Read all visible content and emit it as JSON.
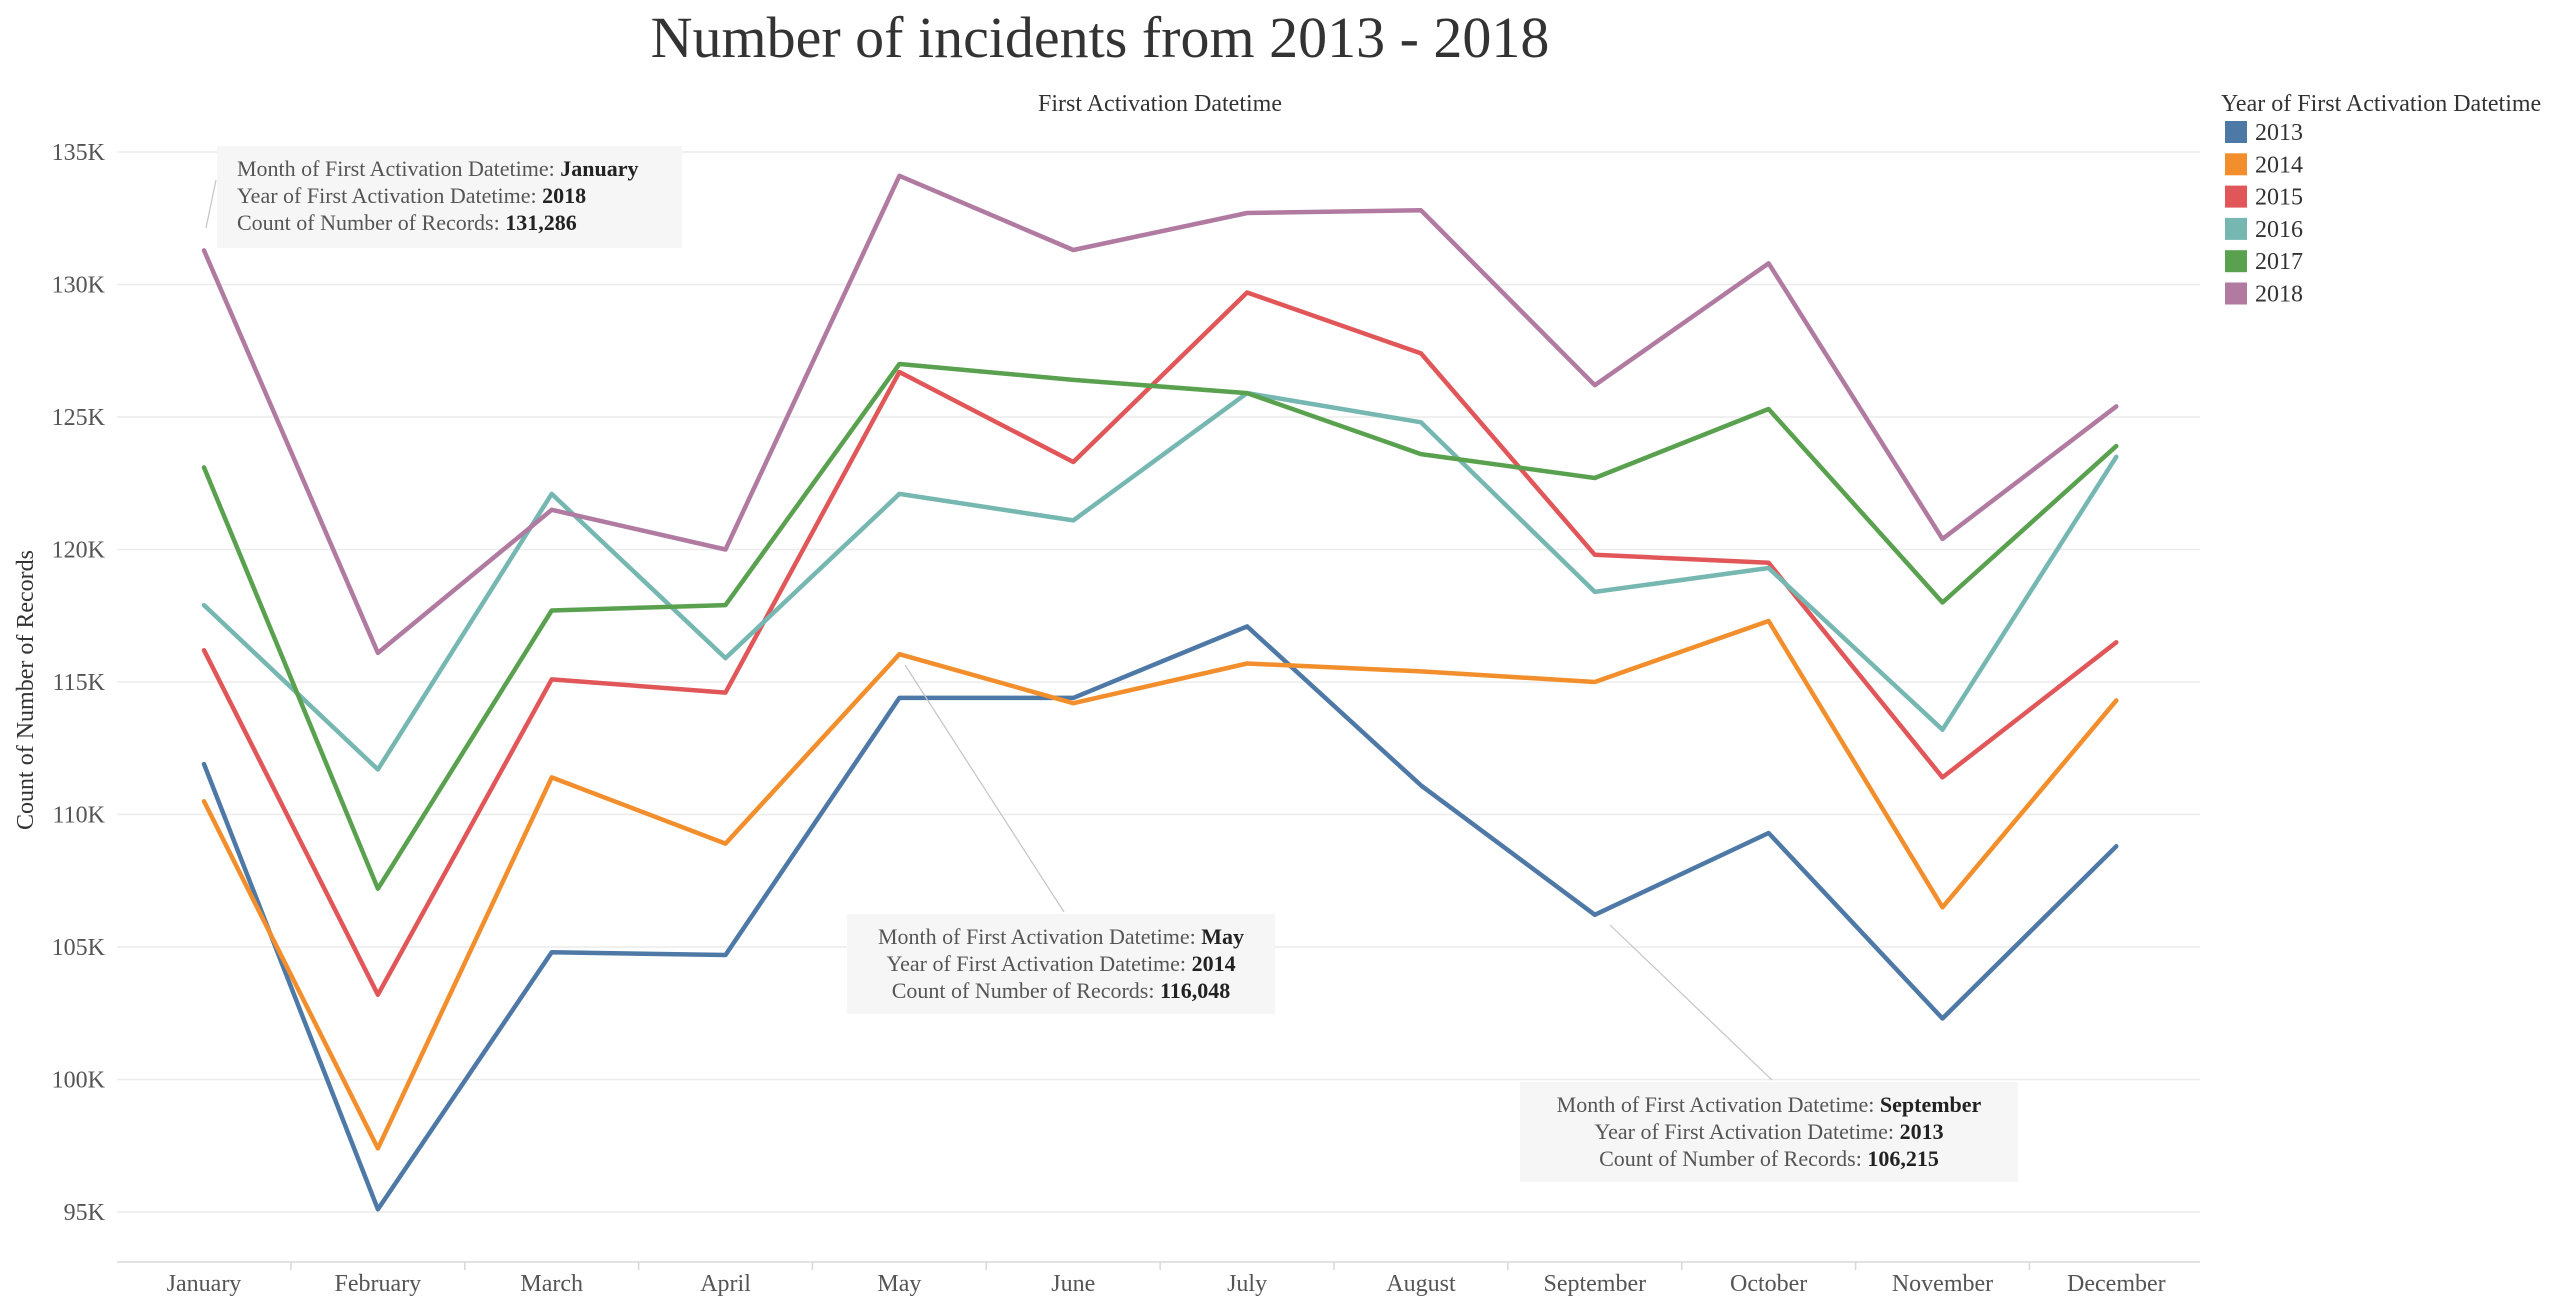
{
  "chart_data": {
    "type": "line",
    "title": "Number of incidents from 2013 - 2018",
    "subtitle": "First Activation Datetime",
    "xlabel": "",
    "ylabel": "Count of Number of Records",
    "ylim": [
      93000,
      135000
    ],
    "yticks": [
      95000,
      100000,
      105000,
      110000,
      115000,
      120000,
      125000,
      130000,
      135000
    ],
    "ytick_labels": [
      "95K",
      "100K",
      "105K",
      "110K",
      "115K",
      "120K",
      "125K",
      "130K",
      "135K"
    ],
    "grid": true,
    "legend_title": "Year of First Activation Datetime",
    "legend_position": "top-right",
    "categories": [
      "January",
      "February",
      "March",
      "April",
      "May",
      "June",
      "July",
      "August",
      "September",
      "October",
      "November",
      "December"
    ],
    "series": [
      {
        "name": "2013",
        "color": "#4e79a7",
        "values": [
          111900,
          95100,
          104800,
          104700,
          114400,
          114400,
          117100,
          111100,
          106215,
          109300,
          102300,
          108800
        ]
      },
      {
        "name": "2014",
        "color": "#f28e2b",
        "values": [
          110500,
          97400,
          111400,
          108900,
          116048,
          114200,
          115700,
          115400,
          115000,
          117300,
          106500,
          114300
        ]
      },
      {
        "name": "2015",
        "color": "#e15759",
        "values": [
          116200,
          103200,
          115100,
          114600,
          126700,
          123300,
          129700,
          127400,
          119800,
          119500,
          111400,
          116500
        ]
      },
      {
        "name": "2016",
        "color": "#76b7b2",
        "values": [
          117900,
          111700,
          122100,
          115900,
          122100,
          121100,
          125900,
          124800,
          118400,
          119300,
          113200,
          123500
        ]
      },
      {
        "name": "2017",
        "color": "#59a14f",
        "values": [
          123100,
          107200,
          117700,
          117900,
          127000,
          126400,
          125900,
          123600,
          122700,
          125300,
          118000,
          123900
        ]
      },
      {
        "name": "2018",
        "color": "#b07aa1",
        "values": [
          131286,
          116100,
          121500,
          120000,
          134100,
          131300,
          132700,
          132800,
          126200,
          130800,
          120400,
          125400
        ]
      }
    ],
    "annotations": [
      {
        "month_label": "Month of First Activation Datetime: ",
        "month": "January",
        "year_label": "Year of First Activation Datetime: ",
        "year": "2018",
        "count_label": "Count of Number of Records: ",
        "count": "131,286"
      },
      {
        "month_label": "Month of First Activation Datetime: ",
        "month": "May",
        "year_label": "Year of First Activation Datetime: ",
        "year": "2014",
        "count_label": "Count of Number of Records: ",
        "count": "116,048"
      },
      {
        "month_label": "Month of First Activation Datetime: ",
        "month": "September",
        "year_label": "Year of First Activation Datetime: ",
        "year": "2013",
        "count_label": "Count of Number of Records: ",
        "count": "106,215"
      }
    ]
  }
}
